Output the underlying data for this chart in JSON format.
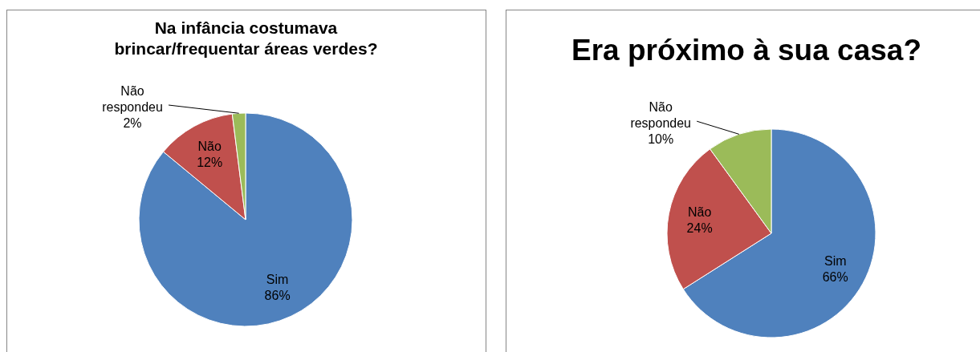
{
  "chart_data": [
    {
      "type": "pie",
      "title": "Na infância costumava brincar/frequentar áreas verdes?",
      "categories": [
        "Sim",
        "Não",
        "Não respondeu"
      ],
      "values": [
        86,
        12,
        2
      ],
      "colors": [
        "#4f81bd",
        "#c0504d",
        "#9bbb59"
      ],
      "value_labels": [
        "86%",
        "12%",
        "2%"
      ],
      "legend": false
    },
    {
      "type": "pie",
      "title": "Era próximo à sua casa?",
      "categories": [
        "Sim",
        "Não",
        "Não respondeu"
      ],
      "values": [
        66,
        24,
        10
      ],
      "colors": [
        "#4f81bd",
        "#c0504d",
        "#9bbb59"
      ],
      "value_labels": [
        "66%",
        "24%",
        "10%"
      ],
      "legend": false
    }
  ]
}
